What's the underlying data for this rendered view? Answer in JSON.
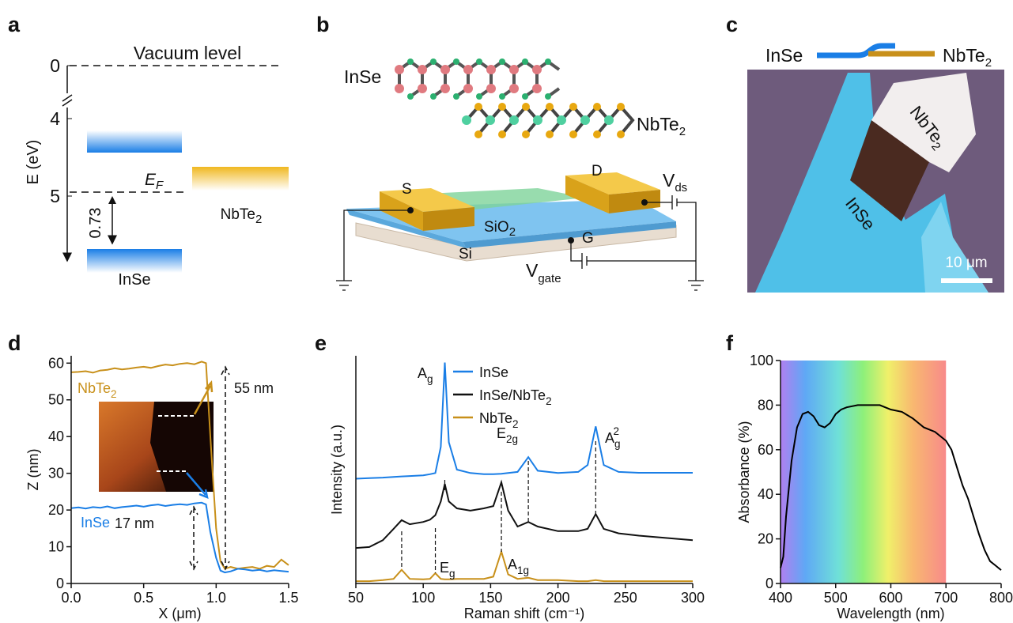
{
  "panels": {
    "a": {
      "label": "a",
      "vacuum_level": "Vacuum level",
      "ticks": [
        0,
        4,
        5
      ],
      "axis_label": "E (eV)",
      "fermi": {
        "base": "E",
        "sub": "F"
      },
      "gap": 0.73,
      "inse": "InSe",
      "nbte2": {
        "base": "NbTe",
        "sub": "2"
      }
    },
    "b": {
      "label": "b",
      "inse": "InSe",
      "nbte2": {
        "base": "NbTe",
        "sub": "2"
      },
      "source": "S",
      "drain": "D",
      "vds": {
        "base": "V",
        "sub": "ds"
      },
      "sio2": {
        "base": "SiO",
        "sub": "2"
      },
      "gate": "G",
      "si": "Si",
      "vgate": {
        "base": "V",
        "sub": "gate"
      }
    },
    "c": {
      "label": "c",
      "inse": "InSe",
      "nbte2": {
        "base": "NbTe",
        "sub": "2"
      },
      "flake_nbte2": {
        "base": "NbTe",
        "sub": "2"
      },
      "flake_inse": "InSe",
      "scale_bar": "10 μm"
    }
  },
  "chart_data": [
    {
      "type": "line",
      "panel_label": "d",
      "xlabel": "X (μm)",
      "ylabel": "Z (nm)",
      "x": [
        0,
        0.05,
        0.1,
        0.15,
        0.2,
        0.25,
        0.3,
        0.35,
        0.4,
        0.45,
        0.5,
        0.55,
        0.6,
        0.65,
        0.7,
        0.75,
        0.8,
        0.85,
        0.9,
        0.93,
        0.96,
        1.0,
        1.03,
        1.06,
        1.1,
        1.15,
        1.2,
        1.25,
        1.3,
        1.35,
        1.4,
        1.45,
        1.5
      ],
      "series": [
        {
          "name": {
            "base": "NbTe",
            "sub": "2"
          },
          "color": "#c8901a",
          "values": [
            57.5,
            57.6,
            57.8,
            57.4,
            58,
            58.2,
            58.6,
            58.3,
            58.5,
            58.8,
            59,
            58.7,
            59.2,
            59.6,
            59.4,
            59.8,
            60,
            59.7,
            60.4,
            60,
            40,
            15,
            6,
            4,
            4.5,
            4,
            4.3,
            4.5,
            4,
            4.8,
            4.5,
            6.5,
            5
          ]
        },
        {
          "name": "InSe",
          "color": "#1a7ee6",
          "values": [
            20.5,
            20.7,
            20.4,
            20.8,
            20.6,
            21,
            20.5,
            20.8,
            21,
            21.2,
            20.9,
            21.3,
            21.5,
            21.1,
            21.4,
            21.6,
            21.4,
            21.8,
            22,
            21.5,
            14,
            7,
            3.5,
            3,
            3.3,
            4,
            3.8,
            3.5,
            3.7,
            3.3,
            3.6,
            3.4,
            3.2
          ]
        }
      ],
      "annotations": [
        "55 nm",
        "17 nm"
      ],
      "xlim": [
        0,
        1.5
      ],
      "xticks": [
        {
          "value": 0,
          "label": "0.0"
        },
        0.5,
        {
          "value": 1,
          "label": "1.0"
        },
        1.5
      ],
      "ylim": [
        0,
        62
      ],
      "yticks": [
        0,
        10,
        20,
        30,
        40,
        50,
        60
      ]
    },
    {
      "type": "line",
      "panel_label": "e",
      "xlabel": "Raman shift (cm⁻¹)",
      "ylabel": "Intensity (a.u.)",
      "x": [
        50,
        60,
        70,
        78,
        84,
        90,
        100,
        105,
        109,
        113,
        116,
        119,
        125,
        135,
        145,
        152,
        158,
        163,
        170,
        178,
        185,
        200,
        215,
        222,
        228,
        234,
        245,
        260,
        280,
        300
      ],
      "series": [
        {
          "name": "InSe",
          "color": "#1a7ee6",
          "values": [
            46,
            46.3,
            46.5,
            46.8,
            47,
            47.2,
            47.5,
            48,
            48.5,
            60,
            97,
            62,
            50,
            48.5,
            48,
            48,
            48.2,
            48.5,
            49,
            55.5,
            49.5,
            48.5,
            49,
            52,
            69,
            52,
            49,
            48.6,
            48.6,
            48.6
          ]
        },
        {
          "name": {
            "base": "InSe/NbTe",
            "sub": "2"
          },
          "color": "#111111",
          "values": [
            15.6,
            16,
            19,
            24,
            27.8,
            26,
            27,
            28,
            30,
            36,
            43.7,
            36,
            33,
            32,
            33,
            34,
            44.4,
            32,
            25,
            27,
            25,
            23,
            23,
            24,
            30.5,
            24,
            22,
            21,
            20,
            19
          ]
        },
        {
          "name": {
            "base": "NbTe",
            "sub": "2"
          },
          "color": "#c8901a",
          "values": [
            1,
            1,
            1.5,
            2,
            6,
            2,
            1.8,
            2,
            4.5,
            2,
            1.8,
            1.8,
            2,
            2,
            2,
            3,
            14,
            4,
            2,
            2.5,
            1.5,
            1.5,
            1,
            1,
            1.5,
            1,
            1,
            1,
            1,
            1
          ]
        }
      ],
      "peaks": [
        {
          "label": {
            "base": "A",
            "sub": "g"
          },
          "x": 116
        },
        {
          "label": {
            "base": "E",
            "sub": "2g"
          },
          "x": 178
        },
        {
          "label": {
            "base": "A",
            "sub": "g",
            "sup": "2"
          },
          "x": 228
        },
        {
          "label": {
            "base": "E",
            "sub": "g"
          },
          "x": 109
        },
        {
          "label": {
            "base": "A",
            "sub": "1g"
          },
          "x": 158
        },
        {
          "label": null,
          "x": 84
        }
      ],
      "xlim": [
        50,
        300
      ],
      "xticks": [
        50,
        100,
        150,
        200,
        250,
        300
      ],
      "ylim": [
        0,
        100
      ],
      "yticks": []
    },
    {
      "type": "line",
      "panel_label": "f",
      "xlabel": "Wavelength (nm)",
      "ylabel": "Absorbance (%)",
      "x": [
        400,
        405,
        410,
        420,
        430,
        440,
        450,
        460,
        470,
        480,
        490,
        500,
        510,
        520,
        540,
        560,
        580,
        600,
        620,
        640,
        660,
        680,
        700,
        710,
        720,
        730,
        740,
        750,
        760,
        770,
        780,
        790,
        800
      ],
      "series": [
        {
          "name": null,
          "color": "#000000",
          "values": [
            7,
            12,
            30,
            55,
            70,
            76,
            77,
            75,
            71,
            70,
            72,
            76,
            78,
            79,
            80,
            80,
            80,
            78,
            77,
            74,
            70,
            68,
            64,
            60,
            52,
            44,
            38,
            30,
            22,
            15,
            10,
            8,
            6
          ]
        }
      ],
      "shaded_range": [
        400,
        700
      ],
      "xlim": [
        400,
        800
      ],
      "xticks": [
        400,
        500,
        600,
        700,
        800
      ],
      "ylim": [
        0,
        100
      ],
      "yticks": [
        0,
        20,
        40,
        60,
        80,
        100
      ]
    }
  ]
}
